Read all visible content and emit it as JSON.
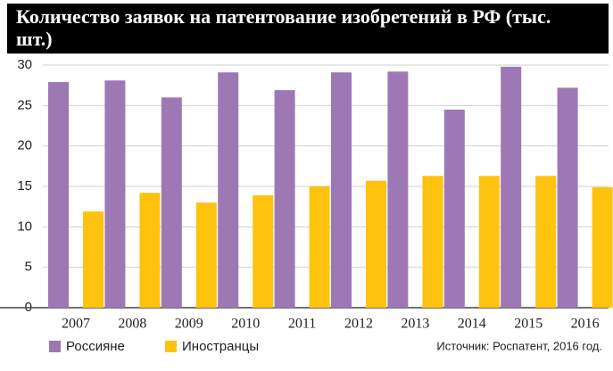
{
  "chart_data": {
    "type": "bar",
    "title": "Количество заявок на патентование изобретений в РФ (тыс. шт.)",
    "categories": [
      "2007",
      "2008",
      "2009",
      "2010",
      "2011",
      "2012",
      "2013",
      "2014",
      "2015",
      "2016"
    ],
    "series": [
      {
        "name": "Россияне",
        "color": "#9e78b5",
        "values": [
          27.9,
          28.1,
          26.0,
          29.1,
          26.9,
          29.1,
          29.2,
          24.5,
          29.8,
          27.2
        ]
      },
      {
        "name": "Иностранцы",
        "color": "#ffc20e",
        "values": [
          11.9,
          14.2,
          13.0,
          13.9,
          15.0,
          15.7,
          16.3,
          16.3,
          16.3,
          14.9
        ]
      }
    ],
    "ylim": [
      0,
      30
    ],
    "yticks": [
      0,
      5,
      10,
      15,
      20,
      25,
      30
    ],
    "grid": true,
    "source": "Источник: Роспатент, 2016 год."
  }
}
